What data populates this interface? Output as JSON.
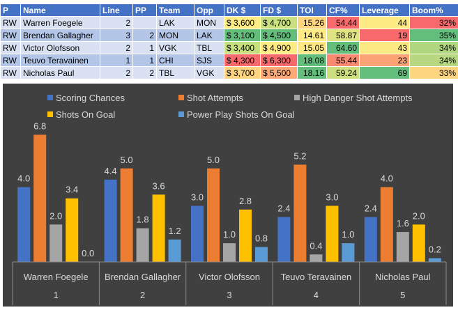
{
  "table": {
    "headers": [
      "P",
      "Name",
      "Line",
      "PP",
      "Team",
      "Opp",
      "DK $",
      "FD $",
      "TOI",
      "CF%",
      "Leverage",
      "Boom%"
    ],
    "rows": [
      {
        "pos": "RW",
        "name": "Warren Foegele",
        "line": "2",
        "pp": "",
        "team": "LAK",
        "opp": "MON",
        "dk": "$ 3,600",
        "fd": "$ 4,700",
        "toi": "15.26",
        "cf": "54.44",
        "leverage": "44",
        "boom": "32%"
      },
      {
        "pos": "RW",
        "name": "Brendan Gallagher",
        "line": "3",
        "pp": "2",
        "team": "MON",
        "opp": "LAK",
        "dk": "$ 3,100",
        "fd": "$ 4,500",
        "toi": "14.61",
        "cf": "58.87",
        "leverage": "19",
        "boom": "35%"
      },
      {
        "pos": "RW",
        "name": "Victor Olofsson",
        "line": "2",
        "pp": "1",
        "team": "VGK",
        "opp": "TBL",
        "dk": "$ 3,400",
        "fd": "$ 4,900",
        "toi": "15.05",
        "cf": "64.60",
        "leverage": "43",
        "boom": "34%"
      },
      {
        "pos": "RW",
        "name": "Teuvo Teravainen",
        "line": "1",
        "pp": "1",
        "team": "CHI",
        "opp": "SJS",
        "dk": "$ 4,300",
        "fd": "$ 6,300",
        "toi": "18.08",
        "cf": "55.44",
        "leverage": "23",
        "boom": "34%"
      },
      {
        "pos": "RW",
        "name": "Nicholas Paul",
        "line": "2",
        "pp": "2",
        "team": "TBL",
        "opp": "VGK",
        "dk": "$ 3,700",
        "fd": "$ 5,500",
        "toi": "18.16",
        "cf": "59.24",
        "leverage": "69",
        "boom": "33%"
      }
    ],
    "colors": {
      "dk": [
        "#ffeb84",
        "#63be7b",
        "#c7e07e",
        "#f8696b",
        "#fed480"
      ],
      "fd": [
        "#c9e07f",
        "#63be7b",
        "#ffeb84",
        "#f8696b",
        "#fca977"
      ],
      "toi": [
        "#fdd57f",
        "#ffeb84",
        "#fee883",
        "#63be7b",
        "#63be7b"
      ],
      "cf": [
        "#f8696b",
        "#e0e383",
        "#63be7b",
        "#f98971",
        "#cbdf7f"
      ],
      "leverage": [
        "#ffeb84",
        "#f8696b",
        "#fde983",
        "#fba375",
        "#63be7b"
      ],
      "boom": [
        "#f8696b",
        "#63be7b",
        "#b0d67f",
        "#b7d880",
        "#fdd47f"
      ]
    }
  },
  "chart_data": {
    "type": "bar",
    "categories": [
      {
        "name": "Warren Foegele",
        "line": "1"
      },
      {
        "name": "Brendan Gallagher",
        "line": "2"
      },
      {
        "name": "Victor Olofsson",
        "line": "3"
      },
      {
        "name": "Teuvo Teravainen",
        "line": "4"
      },
      {
        "name": "Nicholas Paul",
        "line": "5"
      }
    ],
    "series": [
      {
        "name": "Scoring Chances",
        "color": "#4472c4",
        "values": [
          4.0,
          4.4,
          3.0,
          2.4,
          2.4
        ]
      },
      {
        "name": "Shot Attempts",
        "color": "#ed7d31",
        "values": [
          6.8,
          5.0,
          5.0,
          5.2,
          4.0
        ]
      },
      {
        "name": "High Danger Shot Attempts",
        "color": "#a5a5a5",
        "values": [
          2.0,
          1.8,
          1.0,
          0.4,
          1.6
        ]
      },
      {
        "name": "Shots On Goal",
        "color": "#ffc000",
        "values": [
          3.4,
          3.6,
          2.8,
          3.0,
          2.0
        ]
      },
      {
        "name": "Power Play Shots On Goal",
        "color": "#5b9bd5",
        "values": [
          0.0,
          1.2,
          0.8,
          1.0,
          0.2
        ]
      }
    ],
    "ylim": [
      0,
      7.3
    ],
    "legend": "top",
    "background": "#404040",
    "label_color": "#d9d9d9"
  }
}
